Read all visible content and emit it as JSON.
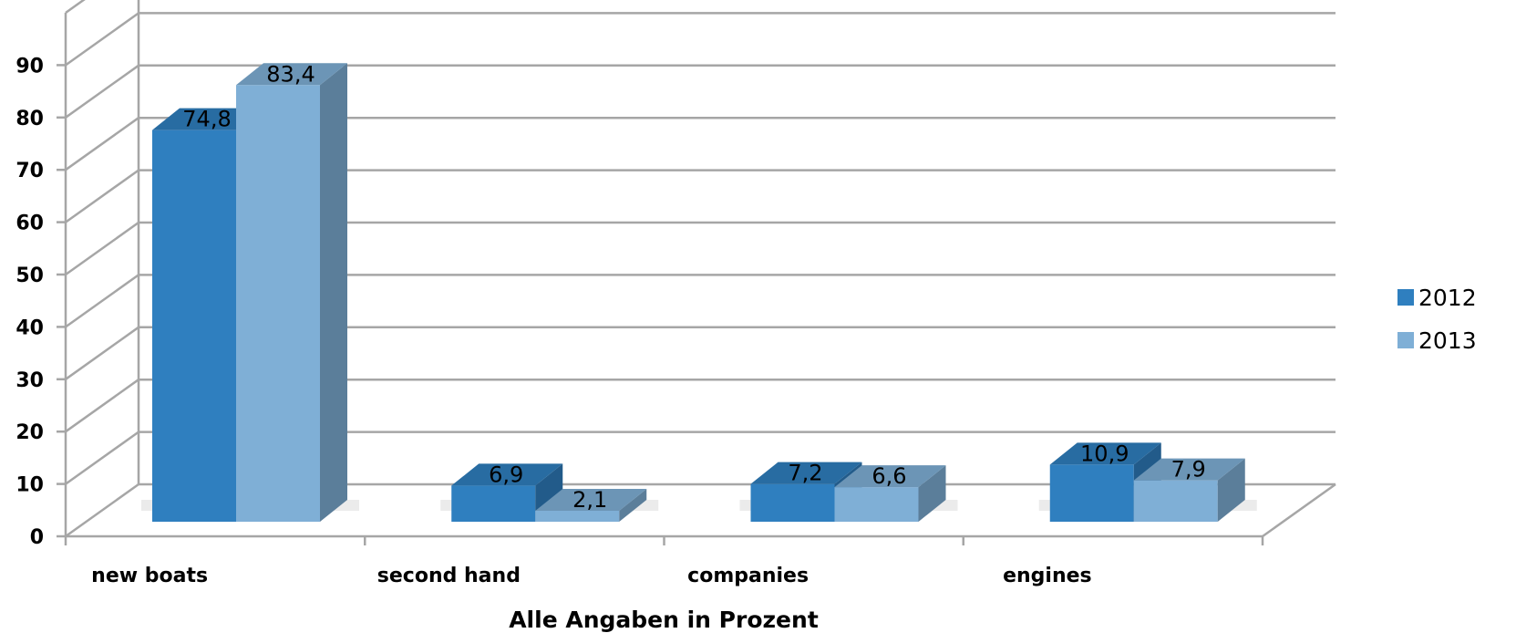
{
  "chart_data": {
    "type": "bar",
    "categories": [
      "new boats",
      "second hand",
      "companies",
      "engines"
    ],
    "series": [
      {
        "name": "2012",
        "values": [
          74.8,
          6.9,
          7.2,
          10.9
        ],
        "labels": [
          "74,8",
          "6,9",
          "7,2",
          "10,9"
        ],
        "color": "#2f7fbf"
      },
      {
        "name": "2013",
        "values": [
          83.4,
          2.1,
          6.6,
          7.9
        ],
        "labels": [
          "83,4",
          "2,1",
          "6,6",
          "7,9"
        ],
        "color": "#7fafd6"
      }
    ],
    "xlabel": "Alle Angaben in Prozent",
    "ylabel": "",
    "ylim": [
      0,
      90
    ],
    "yticks": [
      "0",
      "10",
      "20",
      "30",
      "40",
      "50",
      "60",
      "70",
      "80",
      "90"
    ],
    "grid": true,
    "legend": "right",
    "style": "3d-column"
  }
}
